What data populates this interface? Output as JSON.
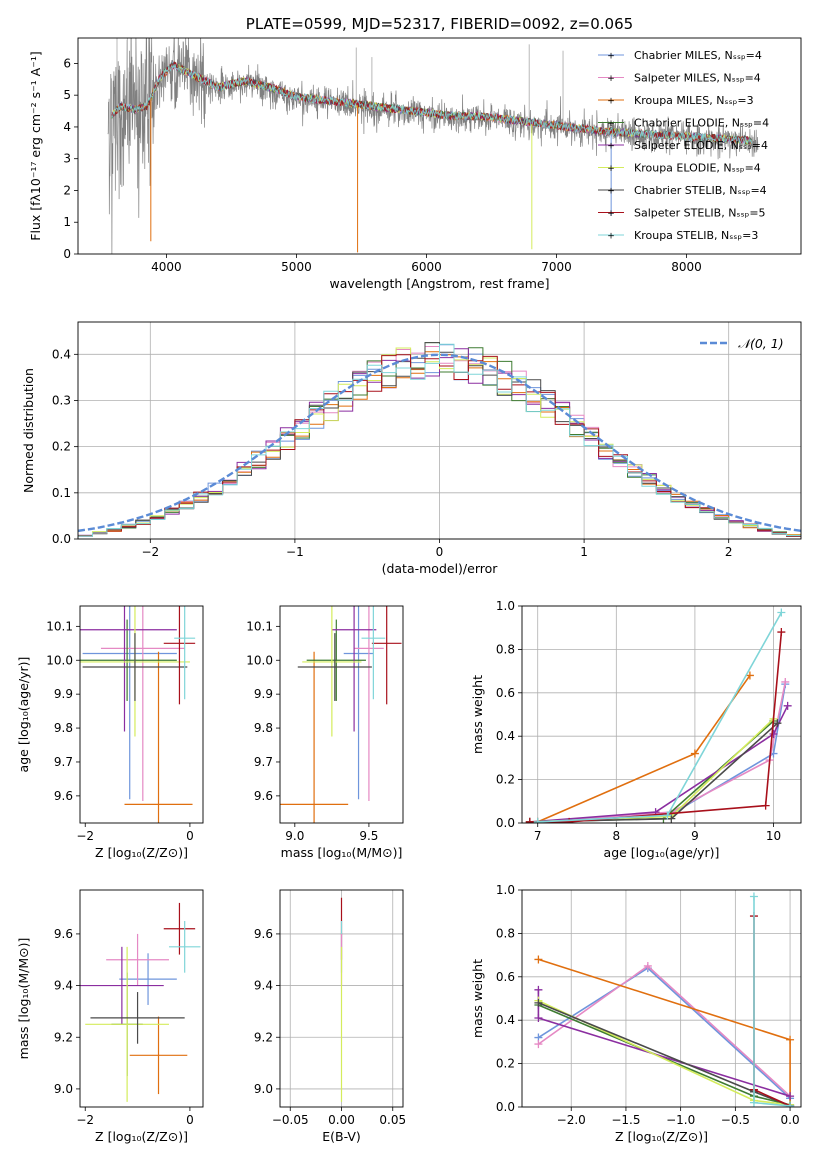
{
  "chart_data": [
    {
      "id": "spectrum",
      "type": "line",
      "title": "PLATE=0599, MJD=52317, FIBERID=0092, z=0.065",
      "xlabel": "wavelength [Angstrom, rest frame]",
      "ylabel": "Flux [fλ10⁻¹⁷ erg cm⁻² s⁻¹ A⁻¹]",
      "xlim": [
        3320,
        8880
      ],
      "ylim": [
        0,
        6.8
      ],
      "xticks": [
        4000,
        5000,
        6000,
        7000,
        8000
      ],
      "yticks": [
        0,
        1,
        2,
        3,
        4,
        5,
        6
      ],
      "grid": false,
      "legend_position": "top-right",
      "legend": [
        "Chabrier MILES, Nₛₛₚ=4",
        "Salpeter MILES, Nₛₛₚ=4",
        "Kroupa MILES, Nₛₛₚ=3",
        "Chabrier ELODIE, Nₛₛₚ=4",
        "Salpeter ELODIE, Nₛₛₚ=4",
        "Kroupa ELODIE, Nₛₛₚ=4",
        "Chabrier STELIB, Nₛₛₚ=4",
        "Salpeter STELIB, Nₛₛₚ=5",
        "Kroupa STELIB, Nₛₛₚ=3"
      ],
      "continuum": [
        [
          3550,
          4.2
        ],
        [
          3650,
          4.6
        ],
        [
          3750,
          4.5
        ],
        [
          3850,
          4.6
        ],
        [
          3950,
          5.5
        ],
        [
          4050,
          5.9
        ],
        [
          4200,
          5.6
        ],
        [
          4400,
          5.2
        ],
        [
          4600,
          5.4
        ],
        [
          4800,
          5.2
        ],
        [
          5000,
          4.9
        ],
        [
          5200,
          4.8
        ],
        [
          5400,
          4.7
        ],
        [
          5600,
          4.6
        ],
        [
          5800,
          4.5
        ],
        [
          6000,
          4.4
        ],
        [
          6200,
          4.3
        ],
        [
          6400,
          4.3
        ],
        [
          6600,
          4.2
        ],
        [
          6800,
          4.1
        ],
        [
          7000,
          4.0
        ],
        [
          7200,
          3.9
        ],
        [
          7400,
          3.8
        ],
        [
          7600,
          3.75
        ],
        [
          7800,
          3.7
        ],
        [
          8000,
          3.65
        ],
        [
          8200,
          3.6
        ],
        [
          8400,
          3.55
        ],
        [
          8550,
          3.5
        ]
      ]
    },
    {
      "id": "residuals",
      "type": "histogram",
      "xlabel": "(data-model)/error",
      "ylabel": "Normed distribution",
      "xlim": [
        -2.5,
        2.5
      ],
      "ylim": [
        0,
        0.47
      ],
      "xticks": [
        -2,
        -1,
        0,
        1,
        2
      ],
      "yticks": [
        0.0,
        0.1,
        0.2,
        0.3,
        0.4
      ],
      "grid": true,
      "legend_position": "top-right",
      "legend": [
        "𝒩(0, 1)"
      ]
    },
    {
      "id": "age-vs-Z",
      "type": "errorbar",
      "xlabel": "Z [log₁₀(Z/Z⊙)]",
      "ylabel": "age  [log₁₀(age/yr)]",
      "xlim": [
        -2.1,
        0.25
      ],
      "ylim": [
        9.52,
        10.16
      ],
      "xticks": [
        -2,
        0
      ],
      "yticks": [
        9.6,
        9.7,
        9.8,
        9.9,
        10.0,
        10.1
      ],
      "grid": false,
      "points": [
        {
          "model": "Chabrier MILES",
          "x": -1.15,
          "xerr": 0.9,
          "y": 10.02,
          "yerr": 0.43
        },
        {
          "model": "Salpeter MILES",
          "x": -0.9,
          "xerr": 0.8,
          "y": 10.035,
          "yerr": 0.45
        },
        {
          "model": "Kroupa MILES",
          "x": -0.6,
          "xerr": 0.65,
          "y": 9.575,
          "yerr": 0.45
        },
        {
          "model": "Chabrier ELODIE",
          "x": -1.2,
          "xerr": 0.95,
          "y": 10.0,
          "yerr": 0.12
        },
        {
          "model": "Salpeter ELODIE",
          "x": -1.25,
          "xerr": 1.0,
          "y": 10.09,
          "yerr": 0.3
        },
        {
          "model": "Kroupa ELODIE",
          "x": -1.05,
          "xerr": 1.05,
          "y": 9.995,
          "yerr": 0.22
        },
        {
          "model": "Chabrier STELIB",
          "x": -1.05,
          "xerr": 1.0,
          "y": 9.98,
          "yerr": 0.1
        },
        {
          "model": "Salpeter STELIB",
          "x": -0.2,
          "xerr": 0.3,
          "y": 10.05,
          "yerr": 0.18
        },
        {
          "model": "Kroupa STELIB",
          "x": -0.1,
          "xerr": 0.2,
          "y": 10.065,
          "yerr": 0.18
        }
      ]
    },
    {
      "id": "age-vs-mass",
      "type": "errorbar",
      "xlabel": "mass [log₁₀(M/M⊙)]",
      "xlim": [
        8.9,
        9.73
      ],
      "ylim": [
        9.52,
        10.16
      ],
      "xticks": [
        9.0,
        9.5
      ],
      "yticks": [
        9.6,
        9.7,
        9.8,
        9.9,
        10.0,
        10.1
      ],
      "grid": false,
      "points": [
        {
          "model": "Chabrier MILES",
          "x": 9.43,
          "xerr": 0.1,
          "y": 10.02,
          "yerr": 0.43
        },
        {
          "model": "Salpeter MILES",
          "x": 9.5,
          "xerr": 0.1,
          "y": 10.035,
          "yerr": 0.45
        },
        {
          "model": "Kroupa MILES",
          "x": 9.13,
          "xerr": 0.23,
          "y": 9.575,
          "yerr": 0.45
        },
        {
          "model": "Chabrier ELODIE",
          "x": 9.28,
          "xerr": 0.2,
          "y": 10.0,
          "yerr": 0.12
        },
        {
          "model": "Salpeter ELODIE",
          "x": 9.4,
          "xerr": 0.15,
          "y": 10.09,
          "yerr": 0.3
        },
        {
          "model": "Kroupa ELODIE",
          "x": 9.25,
          "xerr": 0.2,
          "y": 9.995,
          "yerr": 0.22
        },
        {
          "model": "Chabrier STELIB",
          "x": 9.27,
          "xerr": 0.25,
          "y": 9.98,
          "yerr": 0.1
        },
        {
          "model": "Salpeter STELIB",
          "x": 9.62,
          "xerr": 0.1,
          "y": 10.05,
          "yerr": 0.18
        },
        {
          "model": "Kroupa STELIB",
          "x": 9.53,
          "xerr": 0.08,
          "y": 10.065,
          "yerr": 0.18
        }
      ]
    },
    {
      "id": "weight-vs-age",
      "type": "line",
      "xlabel": "age  [log₁₀(age/yr)]",
      "ylabel": "mass weight",
      "xlim": [
        6.8,
        10.35
      ],
      "ylim": [
        0,
        1.0
      ],
      "xticks": [
        7,
        8,
        9,
        10
      ],
      "yticks": [
        0.0,
        0.2,
        0.4,
        0.6,
        0.8,
        1.0
      ],
      "grid": true,
      "series": [
        {
          "name": "Chabrier MILES",
          "points": [
            [
              7.0,
              0.005
            ],
            [
              8.7,
              0.04
            ],
            [
              10.0,
              0.32
            ],
            [
              10.15,
              0.64
            ]
          ]
        },
        {
          "name": "Salpeter MILES",
          "points": [
            [
              7.0,
              0.005
            ],
            [
              8.7,
              0.05
            ],
            [
              9.95,
              0.29
            ],
            [
              10.15,
              0.65
            ]
          ]
        },
        {
          "name": "Kroupa MILES",
          "points": [
            [
              7.0,
              0.005
            ],
            [
              9.0,
              0.32
            ],
            [
              9.7,
              0.68
            ]
          ]
        },
        {
          "name": "Chabrier ELODIE",
          "points": [
            [
              6.9,
              0.005
            ],
            [
              8.6,
              0.02
            ],
            [
              10.0,
              0.47
            ]
          ]
        },
        {
          "name": "Salpeter ELODIE",
          "points": [
            [
              6.9,
              0.005
            ],
            [
              8.5,
              0.05
            ],
            [
              10.0,
              0.41
            ],
            [
              10.18,
              0.54
            ]
          ]
        },
        {
          "name": "Kroupa ELODIE",
          "points": [
            [
              6.9,
              0.005
            ],
            [
              8.7,
              0.03
            ],
            [
              10.0,
              0.48
            ]
          ]
        },
        {
          "name": "Chabrier STELIB",
          "points": [
            [
              6.9,
              0.005
            ],
            [
              8.7,
              0.02
            ],
            [
              10.05,
              0.46
            ]
          ]
        },
        {
          "name": "Salpeter STELIB",
          "points": [
            [
              6.9,
              0.005
            ],
            [
              7.4,
              0.005
            ],
            [
              9.9,
              0.08
            ],
            [
              10.1,
              0.88
            ]
          ]
        },
        {
          "name": "Kroupa STELIB",
          "points": [
            [
              7.0,
              0.005
            ],
            [
              8.65,
              0.035
            ],
            [
              10.1,
              0.97
            ]
          ]
        }
      ]
    },
    {
      "id": "mass-vs-Z",
      "type": "errorbar",
      "xlabel": "Z [log₁₀(Z/Z⊙)]",
      "ylabel": "mass [log₁₀(M/M⊙)]",
      "xlim": [
        -2.1,
        0.25
      ],
      "ylim": [
        8.93,
        9.77
      ],
      "xticks": [
        -2,
        0
      ],
      "yticks": [
        9.0,
        9.2,
        9.4,
        9.6
      ],
      "grid": false,
      "points": [
        {
          "model": "Chabrier MILES",
          "x": -0.8,
          "xerr": 0.55,
          "y": 9.425,
          "yerr": 0.1
        },
        {
          "model": "Salpeter MILES",
          "x": -1.0,
          "xerr": 0.6,
          "y": 9.5,
          "yerr": 0.1
        },
        {
          "model": "Kroupa MILES",
          "x": -0.6,
          "xerr": 0.55,
          "y": 9.13,
          "yerr": 0.15
        },
        {
          "model": "Chabrier ELODIE",
          "x": -1.2,
          "xerr": 0.3,
          "y": 9.25,
          "yerr": 0.2
        },
        {
          "model": "Salpeter ELODIE",
          "x": -1.3,
          "xerr": 0.8,
          "y": 9.4,
          "yerr": 0.15
        },
        {
          "model": "Kroupa ELODIE",
          "x": -1.2,
          "xerr": 0.8,
          "y": 9.25,
          "yerr": 0.3
        },
        {
          "model": "Chabrier STELIB",
          "x": -1.0,
          "xerr": 0.9,
          "y": 9.275,
          "yerr": 0.1
        },
        {
          "model": "Salpeter STELIB",
          "x": -0.2,
          "xerr": 0.3,
          "y": 9.62,
          "yerr": 0.1
        },
        {
          "model": "Kroupa STELIB",
          "x": -0.1,
          "xerr": 0.3,
          "y": 9.55,
          "yerr": 0.1
        }
      ]
    },
    {
      "id": "mass-vs-EBV",
      "type": "errorbar",
      "xlabel": "E(B-V)",
      "xlim": [
        -0.06,
        0.06
      ],
      "ylim": [
        8.93,
        9.77
      ],
      "xticks": [
        -0.05,
        0.0,
        0.05
      ],
      "yticks": [
        9.0,
        9.2,
        9.4,
        9.6
      ],
      "grid": true,
      "points": [
        {
          "model": "Salpeter STELIB",
          "x": 0,
          "xerr": 0,
          "y": 9.62,
          "yerr": 0.12
        },
        {
          "model": "Kroupa STELIB",
          "x": 0,
          "xerr": 0,
          "y": 9.55,
          "yerr": 0.1
        },
        {
          "model": "Salpeter MILES",
          "x": 0,
          "xerr": 0,
          "y": 9.5,
          "yerr": 0.1
        },
        {
          "model": "Kroupa ELODIE",
          "x": 0,
          "xerr": 0,
          "y": 9.25,
          "yerr": 0.3
        }
      ]
    },
    {
      "id": "weight-vs-Z",
      "type": "line",
      "xlabel": "Z [log₁₀(Z/Z⊙)]",
      "ylabel": "mass weight",
      "xlim": [
        -2.45,
        0.1
      ],
      "ylim": [
        0,
        1.0
      ],
      "xticks": [
        -2.0,
        -1.5,
        -1.0,
        -0.5,
        0.0
      ],
      "yticks": [
        0.0,
        0.2,
        0.4,
        0.6,
        0.8,
        1.0
      ],
      "grid": true,
      "series": [
        {
          "name": "Chabrier MILES",
          "points": [
            [
              -2.3,
              0.32
            ],
            [
              -1.3,
              0.64
            ],
            [
              0.0,
              0.04
            ]
          ]
        },
        {
          "name": "Salpeter MILES",
          "points": [
            [
              -2.3,
              0.29
            ],
            [
              -1.3,
              0.65
            ],
            [
              0.0,
              0.05
            ]
          ]
        },
        {
          "name": "Kroupa MILES",
          "points": [
            [
              -2.3,
              0.68
            ],
            [
              0.0,
              0.31
            ],
            [
              0.0,
              0.005
            ]
          ]
        },
        {
          "name": "Chabrier ELODIE",
          "points": [
            [
              -2.3,
              0.47
            ],
            [
              -0.33,
              0.05
            ],
            [
              0.0,
              0.01
            ]
          ]
        },
        {
          "name": "Salpeter ELODIE",
          "points": [
            [
              -2.3,
              0.54
            ],
            [
              -2.3,
              0.41
            ],
            [
              0.0,
              0.05
            ]
          ]
        },
        {
          "name": "Kroupa ELODIE",
          "points": [
            [
              -2.3,
              0.49
            ],
            [
              -0.33,
              0.03
            ],
            [
              0.0,
              0.01
            ]
          ]
        },
        {
          "name": "Chabrier STELIB",
          "points": [
            [
              -2.3,
              0.48
            ],
            [
              -0.33,
              0.07
            ],
            [
              0.0,
              0.005
            ]
          ]
        },
        {
          "name": "Salpeter STELIB",
          "points": [
            [
              -0.33,
              0.88
            ],
            [
              -0.33,
              0.08
            ],
            [
              0.0,
              0.005
            ]
          ]
        },
        {
          "name": "Kroupa STELIB",
          "points": [
            [
              -0.33,
              0.97
            ],
            [
              -0.33,
              0.02
            ],
            [
              0.0,
              0.005
            ]
          ]
        }
      ]
    }
  ],
  "colors": {
    "Chabrier MILES": "#6f95dc",
    "Salpeter MILES": "#e589c4",
    "Kroupa MILES": "#e06f0f",
    "Chabrier ELODIE": "#3f7c32",
    "Salpeter ELODIE": "#8b2ea0",
    "Kroupa ELODIE": "#d4ec5c",
    "Chabrier STELIB": "#4a4a4a",
    "Salpeter STELIB": "#a8101b",
    "Kroupa STELIB": "#7fd5d8",
    "data": "#808080",
    "normal_curve": "#5b8bd6"
  }
}
